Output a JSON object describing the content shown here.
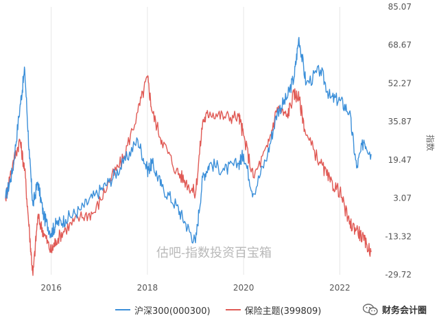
{
  "chart_data": {
    "type": "line",
    "title": "",
    "xlabel": "",
    "ylabel": "指数",
    "x_ticks": [
      "2016",
      "2018",
      "2020",
      "2022"
    ],
    "x_range": [
      2015.05,
      2022.75
    ],
    "y_ticks": [
      "85.07",
      "68.67",
      "52.27",
      "35.87",
      "19.47",
      "3.07",
      "-13.32",
      "-29.72"
    ],
    "ylim": [
      -29.72,
      85.07
    ],
    "grid": "vertical",
    "legend_position": "bottom",
    "series": [
      {
        "name": "沪深300(000300)",
        "color": "#3b8fd9",
        "x": [
          2015.05,
          2015.2,
          2015.35,
          2015.45,
          2015.55,
          2015.62,
          2015.72,
          2015.85,
          2016.0,
          2016.1,
          2016.3,
          2016.6,
          2016.9,
          2017.2,
          2017.5,
          2017.8,
          2018.0,
          2018.1,
          2018.3,
          2018.6,
          2018.8,
          2019.0,
          2019.15,
          2019.3,
          2019.6,
          2019.9,
          2020.0,
          2020.2,
          2020.5,
          2020.7,
          2020.9,
          2021.05,
          2021.15,
          2021.3,
          2021.6,
          2021.8,
          2022.0,
          2022.2,
          2022.35,
          2022.5,
          2022.65
        ],
        "y": [
          3.07,
          15.0,
          42.0,
          58.0,
          20.0,
          0.0,
          10.0,
          -5.0,
          -12.0,
          -8.0,
          -6.0,
          -2.0,
          4.0,
          10.0,
          18.0,
          28.0,
          15.0,
          18.0,
          8.0,
          0.0,
          -8.0,
          -16.0,
          12.0,
          18.0,
          15.0,
          18.0,
          22.0,
          5.0,
          22.0,
          40.0,
          46.0,
          55.0,
          72.0,
          52.0,
          58.0,
          46.0,
          45.0,
          40.0,
          16.0,
          28.0,
          22.0
        ]
      },
      {
        "name": "保险主题(399809)",
        "color": "#e05a55",
        "x": [
          2015.05,
          2015.2,
          2015.35,
          2015.45,
          2015.55,
          2015.62,
          2015.72,
          2015.85,
          2016.0,
          2016.1,
          2016.3,
          2016.6,
          2016.9,
          2017.2,
          2017.5,
          2017.8,
          2018.0,
          2018.1,
          2018.3,
          2018.6,
          2018.8,
          2019.0,
          2019.15,
          2019.3,
          2019.6,
          2019.9,
          2020.0,
          2020.2,
          2020.5,
          2020.7,
          2020.9,
          2021.05,
          2021.15,
          2021.3,
          2021.6,
          2021.8,
          2022.0,
          2022.2,
          2022.35,
          2022.5,
          2022.65
        ],
        "y": [
          3.07,
          18.0,
          28.0,
          15.0,
          -12.0,
          -30.0,
          -5.0,
          -12.0,
          -20.0,
          -15.0,
          -10.0,
          -5.0,
          -3.0,
          10.0,
          20.0,
          40.0,
          55.0,
          40.0,
          28.0,
          15.0,
          10.0,
          5.0,
          36.0,
          40.0,
          38.0,
          38.0,
          30.0,
          12.0,
          25.0,
          42.0,
          38.0,
          48.0,
          46.0,
          30.0,
          18.0,
          10.0,
          6.0,
          -8.0,
          -10.0,
          -15.0,
          -20.0
        ]
      }
    ]
  },
  "watermark_text": "估吧-指数投资百宝箱",
  "source_label": "财务会计圈",
  "icons": {
    "source": "wechat-icon"
  }
}
